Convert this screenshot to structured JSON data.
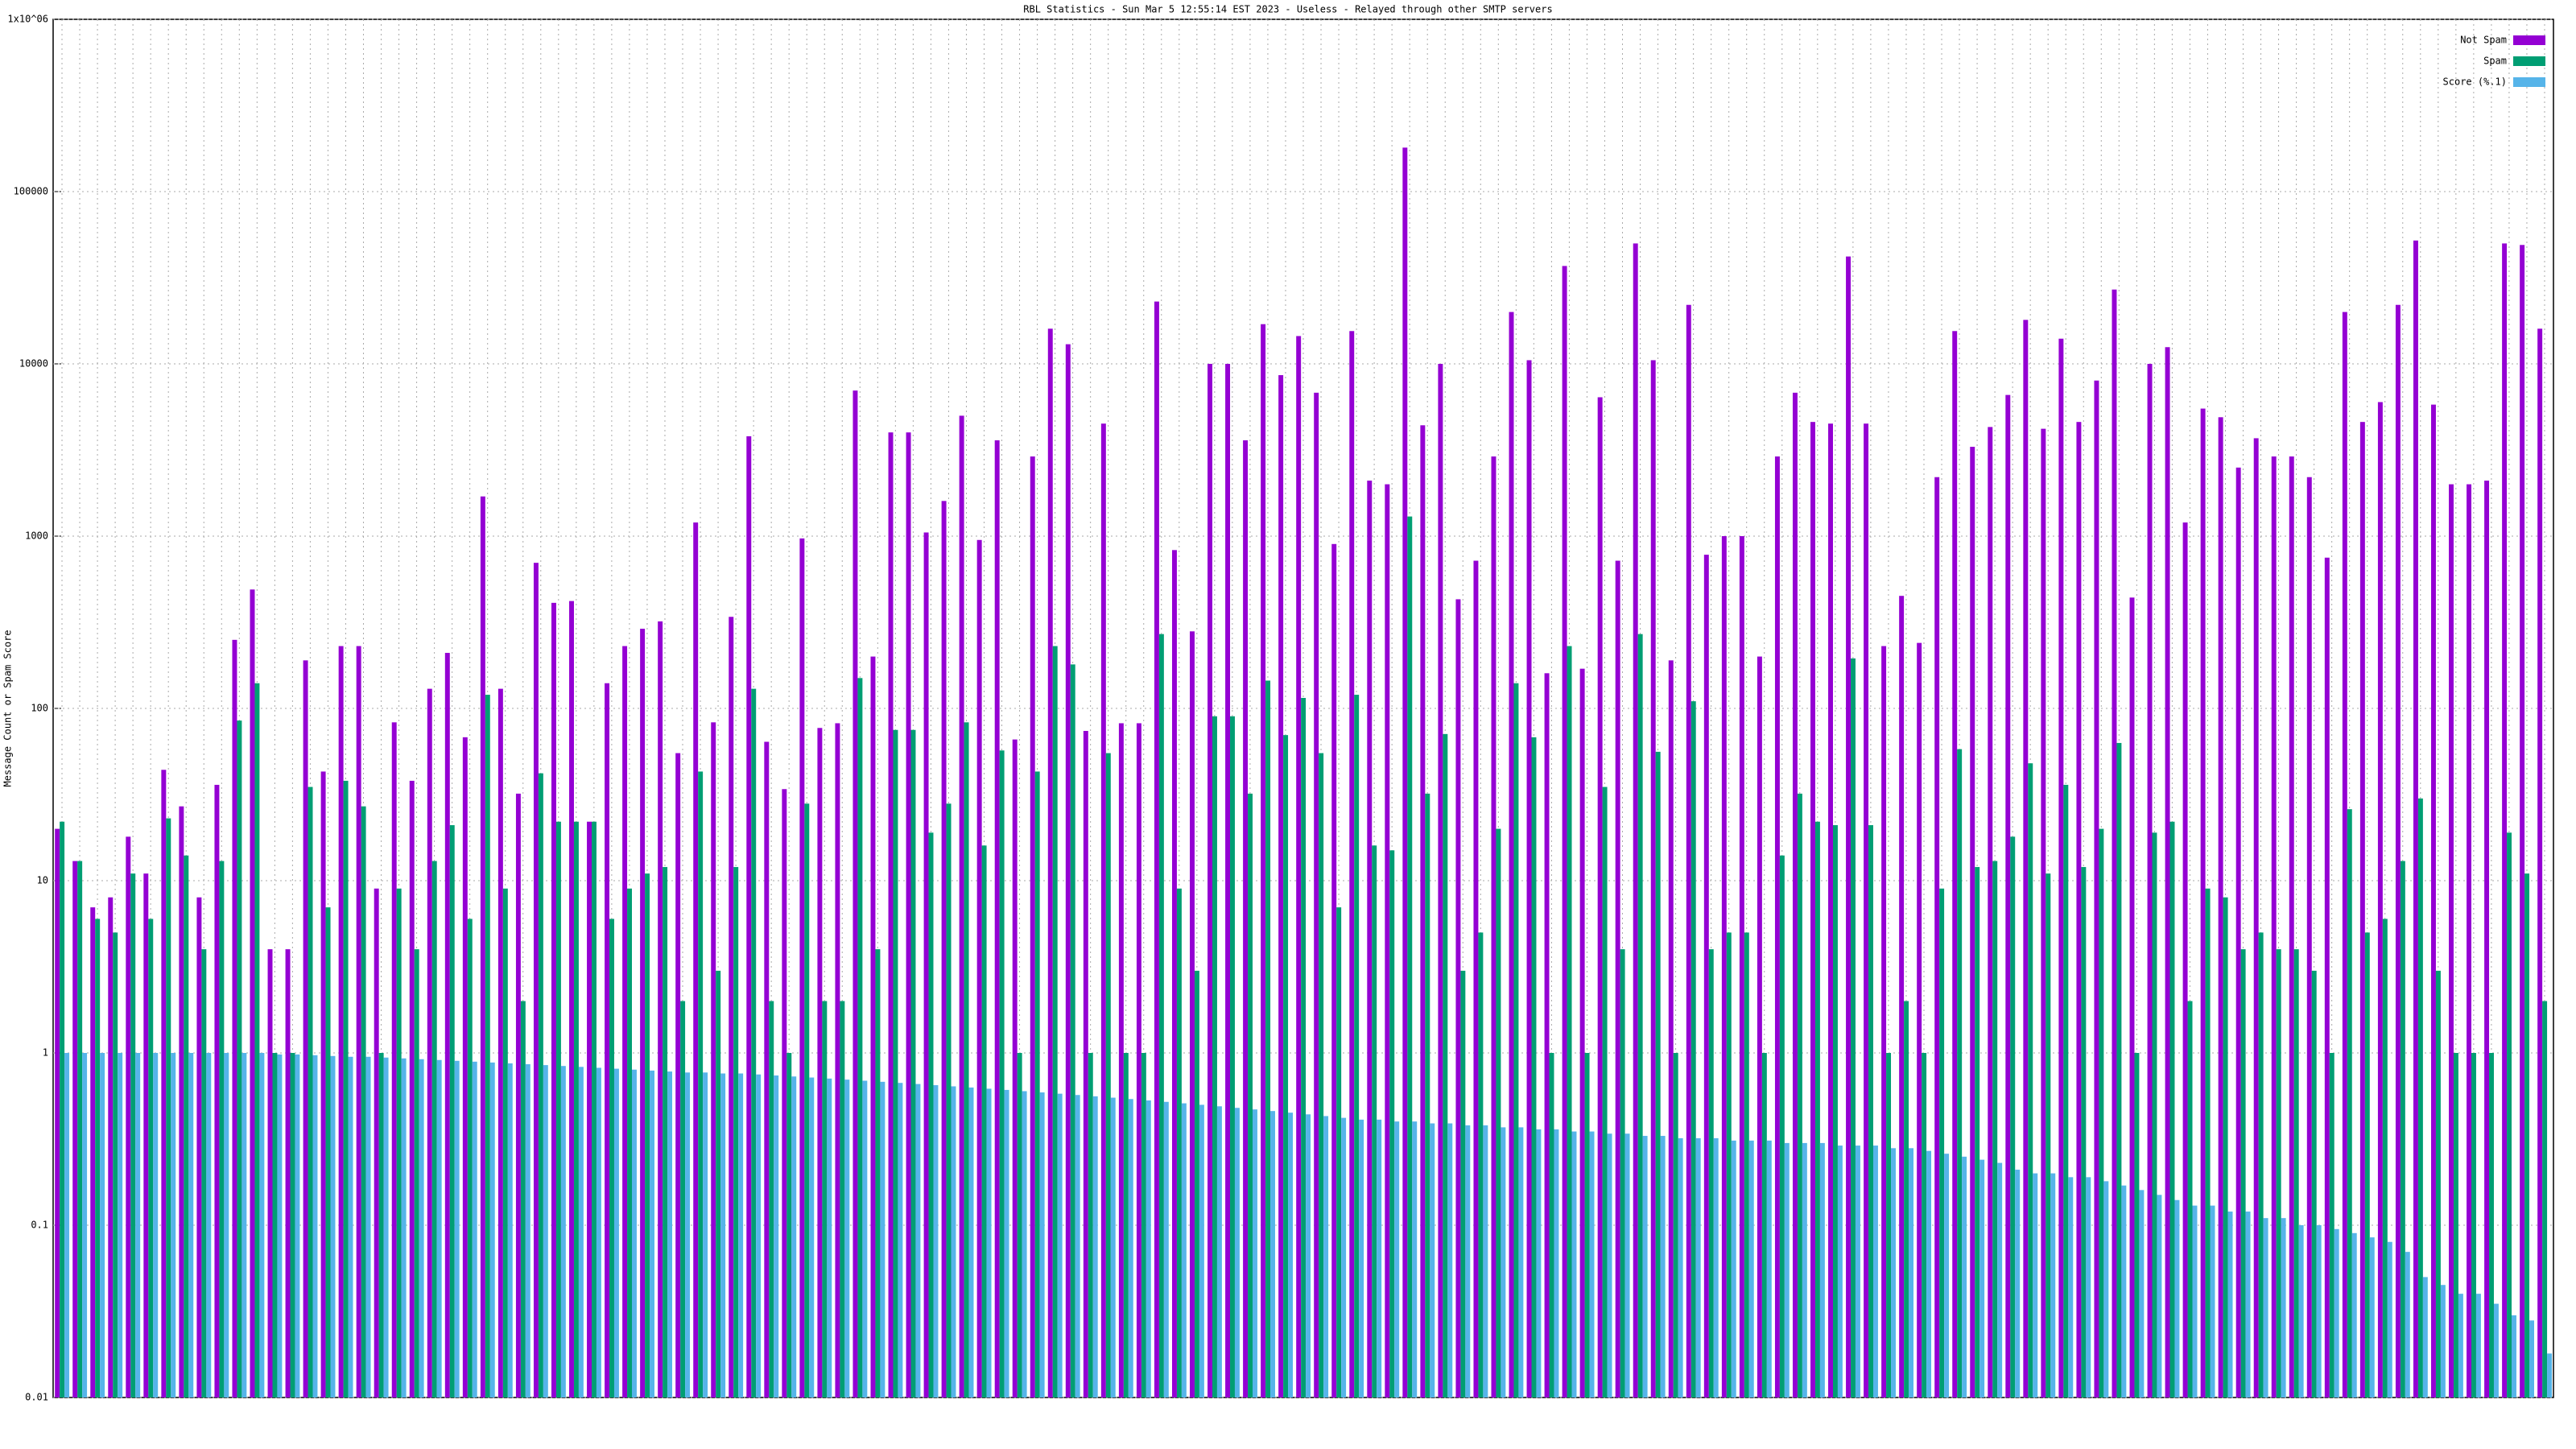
{
  "chart_data": {
    "type": "bar",
    "title": "RBL Statistics - Sun Mar  5 12:55:14 EST 2023 - Useless - Relayed through other SMTP servers",
    "y_label": "Message Count or Spam Score",
    "log_scale": true,
    "grid": true,
    "legend_position": "top-right",
    "ylim": [
      0.01,
      1000000
    ],
    "yticks": [
      0.01,
      0.1,
      1,
      10,
      100,
      1000,
      10000,
      100000,
      {
        "value": 1000000,
        "label": "1x10^06"
      }
    ],
    "series": [
      {
        "name": "Not Spam",
        "color": "#9400d3",
        "values": [
          20,
          13,
          7,
          8,
          18,
          11,
          44,
          27,
          8,
          36,
          250,
          490,
          4,
          4,
          190,
          43,
          230,
          230,
          9,
          83,
          38,
          130,
          210,
          68,
          1700,
          130,
          32,
          700,
          410,
          420,
          22,
          140,
          230,
          290,
          320,
          55,
          1200,
          83,
          340,
          3800,
          64,
          34,
          970,
          77,
          82,
          7000,
          200,
          4000,
          4000,
          1050,
          1600,
          5000,
          950,
          3600,
          66,
          2900,
          16000,
          13000,
          74,
          4500,
          82,
          82,
          23000,
          830,
          280,
          10000,
          10000,
          3600,
          17000,
          8600,
          14500,
          6800,
          900,
          15500,
          2100,
          2000,
          180000,
          4400,
          10000,
          430,
          720,
          2900,
          20000,
          10500,
          160,
          37000,
          170,
          6400,
          720,
          50000,
          10500,
          190,
          22000,
          780,
          1000,
          1000,
          200,
          2900,
          6800,
          4600,
          4500,
          42000,
          4500,
          230,
          450,
          240,
          2200,
          15500,
          3300,
          4300,
          6600,
          18000,
          4200,
          14000,
          4600,
          8000,
          27000,
          440,
          10000,
          12500,
          1200,
          5500,
          4900,
          2500,
          3700,
          2900,
          2900,
          2200,
          750,
          20000,
          4600,
          6000,
          22000,
          52000,
          5800,
          2000,
          2000,
          2100,
          50000,
          49000,
          16000
        ]
      },
      {
        "name": "Spam",
        "color": "#009e73",
        "values": [
          22,
          13,
          6,
          5,
          11,
          6,
          23,
          14,
          4,
          13,
          85,
          140,
          1,
          1,
          35,
          7,
          38,
          27,
          1,
          9,
          4,
          13,
          21,
          6,
          120,
          9,
          2,
          42,
          22,
          22,
          22,
          6,
          9,
          11,
          12,
          2,
          43,
          3,
          12,
          130,
          2,
          1,
          28,
          2,
          2,
          150,
          4,
          75,
          75,
          19,
          28,
          83,
          16,
          57,
          1,
          43,
          230,
          180,
          1,
          55,
          1,
          1,
          270,
          9,
          3,
          90,
          90,
          32,
          145,
          70,
          115,
          55,
          7,
          120,
          16,
          15,
          1300,
          32,
          71,
          3,
          5,
          20,
          140,
          68,
          1,
          230,
          1,
          35,
          4,
          270,
          56,
          1,
          110,
          4,
          5,
          5,
          1,
          14,
          32,
          22,
          21,
          195,
          21,
          1,
          2,
          1,
          9,
          58,
          12,
          13,
          18,
          48,
          11,
          36,
          12,
          20,
          63,
          1,
          19,
          22,
          2,
          9,
          8,
          4,
          5,
          4,
          4,
          3,
          1,
          26,
          5,
          6,
          13,
          30,
          3,
          1,
          1,
          1,
          19,
          11,
          2
        ]
      },
      {
        "name": "Score (%.1)",
        "color": "#56b4e9",
        "values": [
          1,
          1,
          1,
          1,
          1,
          1,
          1,
          1,
          1,
          1,
          1,
          1,
          0.98,
          0.98,
          0.97,
          0.96,
          0.95,
          0.95,
          0.94,
          0.93,
          0.92,
          0.91,
          0.9,
          0.89,
          0.88,
          0.87,
          0.86,
          0.85,
          0.84,
          0.83,
          0.82,
          0.81,
          0.8,
          0.79,
          0.78,
          0.77,
          0.77,
          0.76,
          0.76,
          0.75,
          0.74,
          0.73,
          0.72,
          0.71,
          0.7,
          0.69,
          0.68,
          0.67,
          0.66,
          0.65,
          0.64,
          0.63,
          0.62,
          0.61,
          0.6,
          0.59,
          0.58,
          0.57,
          0.56,
          0.55,
          0.54,
          0.53,
          0.52,
          0.51,
          0.5,
          0.49,
          0.48,
          0.47,
          0.46,
          0.45,
          0.44,
          0.43,
          0.42,
          0.41,
          0.41,
          0.4,
          0.4,
          0.39,
          0.39,
          0.38,
          0.38,
          0.37,
          0.37,
          0.36,
          0.36,
          0.35,
          0.35,
          0.34,
          0.34,
          0.33,
          0.33,
          0.32,
          0.32,
          0.32,
          0.31,
          0.31,
          0.31,
          0.3,
          0.3,
          0.3,
          0.29,
          0.29,
          0.29,
          0.28,
          0.28,
          0.27,
          0.26,
          0.25,
          0.24,
          0.23,
          0.21,
          0.2,
          0.2,
          0.19,
          0.19,
          0.18,
          0.17,
          0.16,
          0.15,
          0.14,
          0.13,
          0.13,
          0.12,
          0.12,
          0.11,
          0.11,
          0.1,
          0.1,
          0.095,
          0.09,
          0.085,
          0.08,
          0.07,
          0.05,
          0.045,
          0.04,
          0.04,
          0.035,
          0.03,
          0.028,
          0.018
        ]
      }
    ]
  }
}
